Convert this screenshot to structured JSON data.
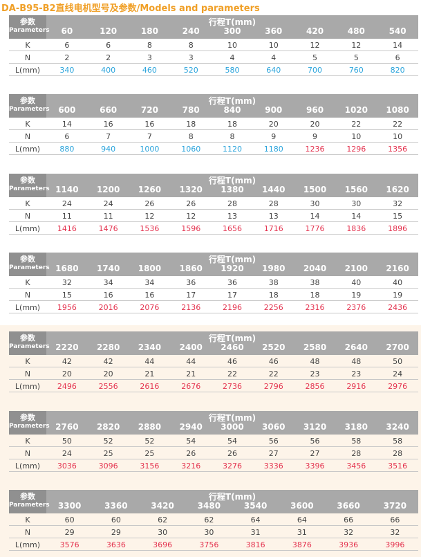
{
  "title": "DA-B95-B2直线电机型号及参数/Models and parameters",
  "tables": [
    {
      "param_label": "参数",
      "param_label_en": "Parameters",
      "stroke_label": "行程T(mm)",
      "strokes": [
        60,
        120,
        180,
        240,
        300,
        360,
        420,
        480,
        540
      ],
      "rows": [
        {
          "label": "K",
          "values": [
            6,
            6,
            8,
            8,
            10,
            10,
            12,
            12,
            14
          ]
        },
        {
          "label": "N",
          "values": [
            2,
            2,
            3,
            3,
            4,
            4,
            5,
            5,
            6
          ]
        },
        {
          "label": "L(mm)",
          "values": [
            340,
            400,
            460,
            520,
            580,
            640,
            700,
            760,
            820
          ],
          "colors": [
            "#2aa4dc",
            "#2aa4dc",
            "#2aa4dc",
            "#2aa4dc",
            "#2aa4dc",
            "#2aa4dc",
            "#2aa4dc",
            "#2aa4dc",
            "#2aa4dc"
          ]
        }
      ]
    },
    {
      "param_label": "参数",
      "param_label_en": "Parameters",
      "stroke_label": "行程T(mm)",
      "strokes": [
        600,
        660,
        720,
        780,
        840,
        900,
        960,
        1020,
        1080
      ],
      "rows": [
        {
          "label": "K",
          "values": [
            14,
            16,
            16,
            18,
            18,
            20,
            20,
            22,
            22
          ]
        },
        {
          "label": "N",
          "values": [
            6,
            7,
            7,
            8,
            8,
            9,
            9,
            10,
            10
          ]
        },
        {
          "label": "L(mm)",
          "values": [
            880,
            940,
            1000,
            1060,
            1120,
            1180,
            1236,
            1296,
            1356
          ],
          "colors": [
            "#2aa4dc",
            "#2aa4dc",
            "#2aa4dc",
            "#2aa4dc",
            "#2aa4dc",
            "#2aa4dc",
            "#e4334f",
            "#e4334f",
            "#e4334f"
          ]
        }
      ]
    },
    {
      "param_label": "参数",
      "param_label_en": "Parameters",
      "stroke_label": "行程T(mm)",
      "strokes": [
        1140,
        1200,
        1260,
        1320,
        1380,
        1440,
        1500,
        1560,
        1620
      ],
      "rows": [
        {
          "label": "K",
          "values": [
            24,
            24,
            26,
            26,
            28,
            28,
            30,
            30,
            32
          ]
        },
        {
          "label": "N",
          "values": [
            11,
            11,
            12,
            12,
            13,
            13,
            14,
            14,
            15
          ]
        },
        {
          "label": "L(mm)",
          "values": [
            1416,
            1476,
            1536,
            1596,
            1656,
            1716,
            1776,
            1836,
            1896
          ],
          "colors": [
            "#e4334f",
            "#e4334f",
            "#e4334f",
            "#e4334f",
            "#e4334f",
            "#e4334f",
            "#e4334f",
            "#e4334f",
            "#e4334f"
          ]
        }
      ]
    },
    {
      "param_label": "参数",
      "param_label_en": "Parameters",
      "stroke_label": "行程T(mm)",
      "strokes": [
        1680,
        1740,
        1800,
        1860,
        1920,
        1980,
        2040,
        2100,
        2160
      ],
      "rows": [
        {
          "label": "K",
          "values": [
            32,
            34,
            34,
            36,
            36,
            38,
            38,
            40,
            40
          ]
        },
        {
          "label": "N",
          "values": [
            15,
            16,
            16,
            17,
            17,
            18,
            18,
            19,
            19
          ]
        },
        {
          "label": "L(mm)",
          "values": [
            1956,
            2016,
            2076,
            2136,
            2196,
            2256,
            2316,
            2376,
            2436
          ],
          "colors": [
            "#e4334f",
            "#e4334f",
            "#e4334f",
            "#e4334f",
            "#e4334f",
            "#e4334f",
            "#e4334f",
            "#e4334f",
            "#e4334f"
          ]
        }
      ]
    },
    {
      "param_label": "参数",
      "param_label_en": "Parameters",
      "stroke_label": "行程T(mm)",
      "strokes": [
        2220,
        2280,
        2340,
        2400,
        2460,
        2520,
        2580,
        2640,
        2700
      ],
      "rows": [
        {
          "label": "K",
          "values": [
            42,
            42,
            44,
            44,
            46,
            46,
            48,
            48,
            50
          ]
        },
        {
          "label": "N",
          "values": [
            20,
            20,
            21,
            21,
            22,
            22,
            23,
            23,
            24
          ]
        },
        {
          "label": "L(mm)",
          "values": [
            2496,
            2556,
            2616,
            2676,
            2736,
            2796,
            2856,
            2916,
            2976
          ],
          "colors": [
            "#e4334f",
            "#e4334f",
            "#e4334f",
            "#e4334f",
            "#e4334f",
            "#e4334f",
            "#e4334f",
            "#e4334f",
            "#e4334f"
          ]
        }
      ]
    },
    {
      "param_label": "参数",
      "param_label_en": "Parameters",
      "stroke_label": "行程T(mm)",
      "strokes": [
        2760,
        2820,
        2880,
        2940,
        3000,
        3060,
        3120,
        3180,
        3240
      ],
      "rows": [
        {
          "label": "K",
          "values": [
            50,
            52,
            52,
            54,
            54,
            56,
            56,
            58,
            58
          ]
        },
        {
          "label": "N",
          "values": [
            24,
            25,
            25,
            26,
            26,
            27,
            27,
            28,
            28
          ]
        },
        {
          "label": "L(mm)",
          "values": [
            3036,
            3096,
            3156,
            3216,
            3276,
            3336,
            3396,
            3456,
            3516
          ],
          "colors": [
            "#e4334f",
            "#e4334f",
            "#e4334f",
            "#e4334f",
            "#e4334f",
            "#e4334f",
            "#e4334f",
            "#e4334f",
            "#e4334f"
          ]
        }
      ]
    },
    {
      "param_label": "参数",
      "param_label_en": "Parameters",
      "stroke_label": "行程T(mm)",
      "strokes": [
        3300,
        3360,
        3420,
        3480,
        3540,
        3600,
        3660,
        3720
      ],
      "rows": [
        {
          "label": "K",
          "values": [
            60,
            60,
            62,
            62,
            64,
            64,
            66,
            66
          ]
        },
        {
          "label": "N",
          "values": [
            29,
            29,
            30,
            30,
            31,
            31,
            32,
            32
          ]
        },
        {
          "label": "L(mm)",
          "values": [
            3576,
            3636,
            3696,
            3756,
            3816,
            3876,
            3936,
            3996
          ],
          "colors": [
            "#e4334f",
            "#e4334f",
            "#e4334f",
            "#e4334f",
            "#e4334f",
            "#e4334f",
            "#e4334f",
            "#e4334f"
          ]
        }
      ]
    }
  ]
}
